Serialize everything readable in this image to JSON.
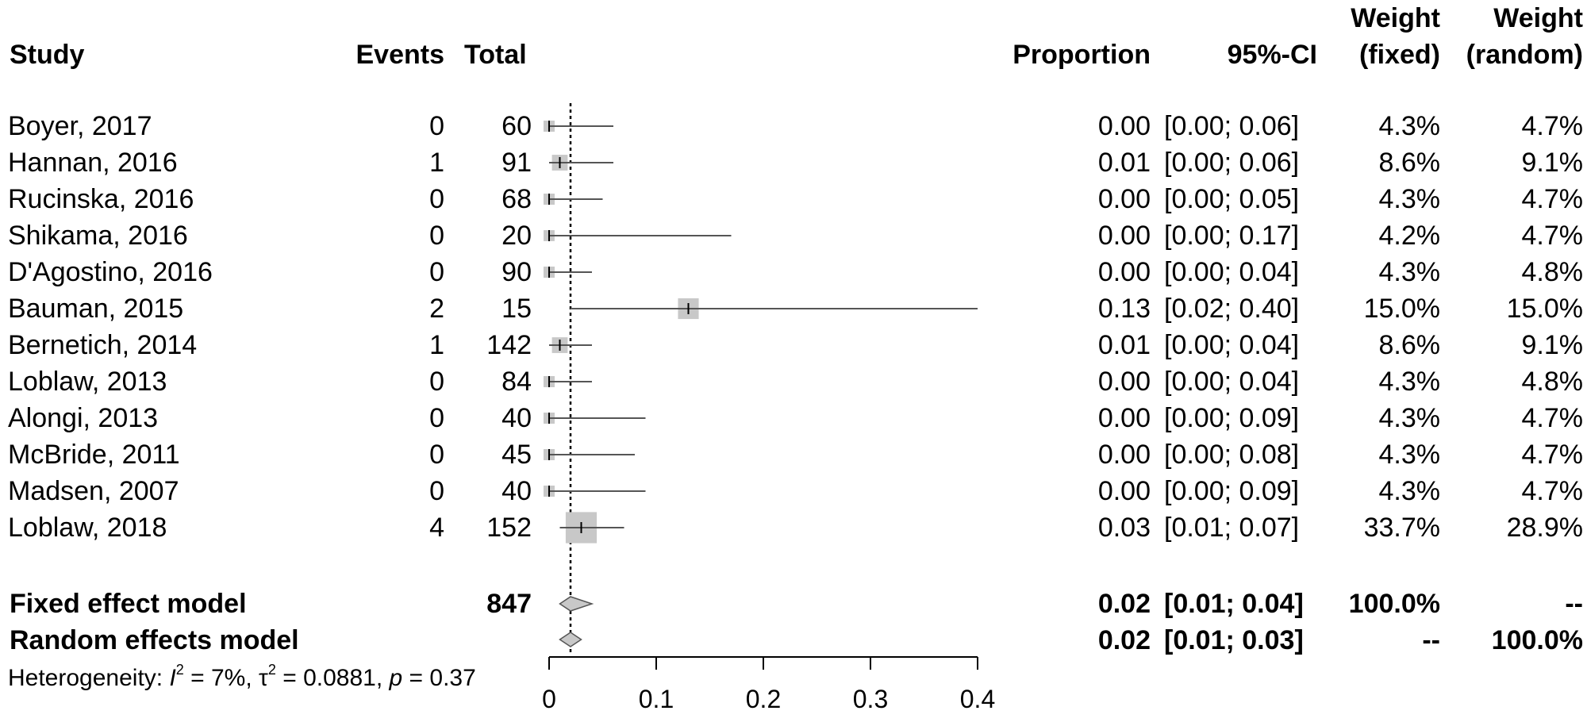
{
  "headers": {
    "study": "Study",
    "events": "Events",
    "total": "Total",
    "proportion": "Proportion",
    "ci": "95%-CI",
    "weight_fixed_1": "Weight",
    "weight_fixed_2": "(fixed)",
    "weight_random_1": "Weight",
    "weight_random_2": "(random)"
  },
  "studies": [
    {
      "study": "Boyer, 2017",
      "events": "0",
      "total": "60",
      "proportion": "0.00",
      "ci": "[0.00; 0.06]",
      "w_fixed": "4.3%",
      "w_random": "4.7%"
    },
    {
      "study": "Hannan, 2016",
      "events": "1",
      "total": "91",
      "proportion": "0.01",
      "ci": "[0.00; 0.06]",
      "w_fixed": "8.6%",
      "w_random": "9.1%"
    },
    {
      "study": "Rucinska, 2016",
      "events": "0",
      "total": "68",
      "proportion": "0.00",
      "ci": "[0.00; 0.05]",
      "w_fixed": "4.3%",
      "w_random": "4.7%"
    },
    {
      "study": "Shikama, 2016",
      "events": "0",
      "total": "20",
      "proportion": "0.00",
      "ci": "[0.00; 0.17]",
      "w_fixed": "4.2%",
      "w_random": "4.7%"
    },
    {
      "study": "D'Agostino, 2016",
      "events": "0",
      "total": "90",
      "proportion": "0.00",
      "ci": "[0.00; 0.04]",
      "w_fixed": "4.3%",
      "w_random": "4.8%"
    },
    {
      "study": "Bauman, 2015",
      "events": "2",
      "total": "15",
      "proportion": "0.13",
      "ci": "[0.02; 0.40]",
      "w_fixed": "15.0%",
      "w_random": "15.0%"
    },
    {
      "study": "Bernetich, 2014",
      "events": "1",
      "total": "142",
      "proportion": "0.01",
      "ci": "[0.00; 0.04]",
      "w_fixed": "8.6%",
      "w_random": "9.1%"
    },
    {
      "study": "Loblaw, 2013",
      "events": "0",
      "total": "84",
      "proportion": "0.00",
      "ci": "[0.00; 0.04]",
      "w_fixed": "4.3%",
      "w_random": "4.8%"
    },
    {
      "study": "Alongi, 2013",
      "events": "0",
      "total": "40",
      "proportion": "0.00",
      "ci": "[0.00; 0.09]",
      "w_fixed": "4.3%",
      "w_random": "4.7%"
    },
    {
      "study": "McBride, 2011",
      "events": "0",
      "total": "45",
      "proportion": "0.00",
      "ci": "[0.00; 0.08]",
      "w_fixed": "4.3%",
      "w_random": "4.7%"
    },
    {
      "study": "Madsen, 2007",
      "events": "0",
      "total": "40",
      "proportion": "0.00",
      "ci": "[0.00; 0.09]",
      "w_fixed": "4.3%",
      "w_random": "4.7%"
    },
    {
      "study": "Loblaw, 2018",
      "events": "4",
      "total": "152",
      "proportion": "0.03",
      "ci": "[0.01; 0.07]",
      "w_fixed": "33.7%",
      "w_random": "28.9%"
    }
  ],
  "models": [
    {
      "label": "Fixed effect model",
      "total": "847",
      "proportion": "0.02",
      "ci": "[0.01; 0.04]",
      "w_fixed": "100.0%",
      "w_random": "--"
    },
    {
      "label": "Random effects model",
      "total": "",
      "proportion": "0.02",
      "ci": "[0.01; 0.03]",
      "w_fixed": "--",
      "w_random": "100.0%"
    }
  ],
  "heterogeneity": {
    "prefix": "Heterogeneity: ",
    "i2_symbol": "I",
    "i2_sup": "2",
    "i2_value": " = 7%, ",
    "tau_symbol": "τ",
    "tau_sup": "2",
    "tau_value": " = 0.0881, ",
    "p_symbol": "p",
    "p_value": " = 0.37"
  },
  "chart_data": {
    "type": "forest",
    "xlim": [
      0,
      0.4
    ],
    "x_ticks": [
      0,
      0.1,
      0.2,
      0.3,
      0.4
    ],
    "x_tick_labels": [
      "0",
      "0.1",
      "0.2",
      "0.3",
      "0.4"
    ],
    "reference_line": 0.02,
    "studies": [
      {
        "study": "Boyer, 2017",
        "estimate": 0.0,
        "lower": 0.0,
        "upper": 0.06,
        "weight": 4.3
      },
      {
        "study": "Hannan, 2016",
        "estimate": 0.01,
        "lower": 0.0,
        "upper": 0.06,
        "weight": 8.6
      },
      {
        "study": "Rucinska, 2016",
        "estimate": 0.0,
        "lower": 0.0,
        "upper": 0.05,
        "weight": 4.3
      },
      {
        "study": "Shikama, 2016",
        "estimate": 0.0,
        "lower": 0.0,
        "upper": 0.17,
        "weight": 4.2
      },
      {
        "study": "D'Agostino, 2016",
        "estimate": 0.0,
        "lower": 0.0,
        "upper": 0.04,
        "weight": 4.3
      },
      {
        "study": "Bauman, 2015",
        "estimate": 0.13,
        "lower": 0.02,
        "upper": 0.4,
        "weight": 15.0
      },
      {
        "study": "Bernetich, 2014",
        "estimate": 0.01,
        "lower": 0.0,
        "upper": 0.04,
        "weight": 8.6
      },
      {
        "study": "Loblaw, 2013",
        "estimate": 0.0,
        "lower": 0.0,
        "upper": 0.04,
        "weight": 4.3
      },
      {
        "study": "Alongi, 2013",
        "estimate": 0.0,
        "lower": 0.0,
        "upper": 0.09,
        "weight": 4.3
      },
      {
        "study": "McBride, 2011",
        "estimate": 0.0,
        "lower": 0.0,
        "upper": 0.08,
        "weight": 4.3
      },
      {
        "study": "Madsen, 2007",
        "estimate": 0.0,
        "lower": 0.0,
        "upper": 0.09,
        "weight": 4.3
      },
      {
        "study": "Loblaw, 2018",
        "estimate": 0.03,
        "lower": 0.01,
        "upper": 0.07,
        "weight": 33.7
      }
    ],
    "summary": [
      {
        "model": "Fixed effect model",
        "estimate": 0.02,
        "lower": 0.01,
        "upper": 0.04
      },
      {
        "model": "Random effects model",
        "estimate": 0.02,
        "lower": 0.01,
        "upper": 0.03
      }
    ]
  }
}
